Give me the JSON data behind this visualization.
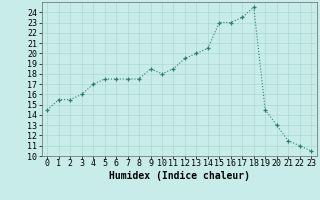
{
  "x": [
    0,
    1,
    2,
    3,
    4,
    5,
    6,
    7,
    8,
    9,
    10,
    11,
    12,
    13,
    14,
    15,
    16,
    17,
    18,
    19,
    20,
    21,
    22,
    23
  ],
  "y": [
    14.5,
    15.5,
    15.5,
    16.0,
    17.0,
    17.5,
    17.5,
    17.5,
    17.5,
    18.5,
    18.0,
    18.5,
    19.5,
    20.0,
    20.5,
    23.0,
    23.0,
    23.5,
    24.5,
    14.5,
    13.0,
    11.5,
    11.0,
    10.5
  ],
  "xlabel": "Humidex (Indice chaleur)",
  "xlim": [
    -0.5,
    23.5
  ],
  "ylim": [
    10,
    25
  ],
  "xticks": [
    0,
    1,
    2,
    3,
    4,
    5,
    6,
    7,
    8,
    9,
    10,
    11,
    12,
    13,
    14,
    15,
    16,
    17,
    18,
    19,
    20,
    21,
    22,
    23
  ],
  "yticks": [
    10,
    11,
    12,
    13,
    14,
    15,
    16,
    17,
    18,
    19,
    20,
    21,
    22,
    23,
    24
  ],
  "line_color": "#2e7d6e",
  "bg_color": "#c8ecea",
  "grid_color": "#aad8d4",
  "label_fontsize": 7,
  "tick_fontsize": 6
}
